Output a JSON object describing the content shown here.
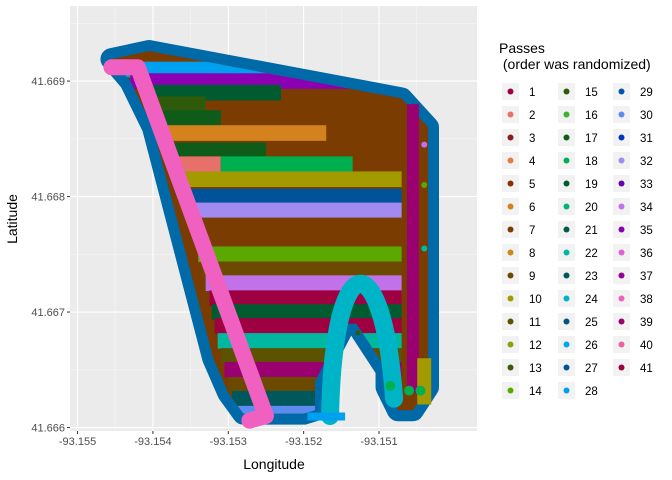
{
  "chart_data": {
    "type": "scatter",
    "xlabel": "Longitude",
    "ylabel": "Latitude",
    "xlim": [
      -93.1551,
      -93.1497
    ],
    "ylim": [
      41.66597,
      41.66965
    ],
    "x_ticks": [
      -93.155,
      -93.154,
      -93.153,
      -93.152,
      -93.151
    ],
    "x_tick_labels": [
      "-93.155",
      "-93.154",
      "-93.153",
      "-93.152",
      "-93.151"
    ],
    "y_ticks": [
      41.666,
      41.667,
      41.668,
      41.669
    ],
    "y_tick_labels": [
      "41.666",
      "41.667",
      "41.668",
      "41.669"
    ],
    "grid": true,
    "legend": {
      "title_line1": "Passes",
      "title_line2": " (order was randomized)",
      "placement": "right"
    },
    "series": [
      {
        "label": "1",
        "color": "#9E0142"
      },
      {
        "label": "2",
        "color": "#E8706A"
      },
      {
        "label": "3",
        "color": "#8B1A1A"
      },
      {
        "label": "4",
        "color": "#E47A4C"
      },
      {
        "label": "5",
        "color": "#8B2E00"
      },
      {
        "label": "6",
        "color": "#D4821E"
      },
      {
        "label": "7",
        "color": "#7A3C00"
      },
      {
        "label": "8",
        "color": "#C88A1A"
      },
      {
        "label": "9",
        "color": "#6B4A00"
      },
      {
        "label": "10",
        "color": "#A39A00"
      },
      {
        "label": "11",
        "color": "#5C5200"
      },
      {
        "label": "12",
        "color": "#8EA010"
      },
      {
        "label": "13",
        "color": "#3E5A0A"
      },
      {
        "label": "14",
        "color": "#5AA800"
      },
      {
        "label": "15",
        "color": "#2E5A0A"
      },
      {
        "label": "16",
        "color": "#3CB428"
      },
      {
        "label": "17",
        "color": "#0F5C1A"
      },
      {
        "label": "18",
        "color": "#00B050"
      },
      {
        "label": "19",
        "color": "#005C30"
      },
      {
        "label": "20",
        "color": "#00B47A"
      },
      {
        "label": "21",
        "color": "#005C48"
      },
      {
        "label": "22",
        "color": "#00B8A0"
      },
      {
        "label": "23",
        "color": "#00585C"
      },
      {
        "label": "24",
        "color": "#00B4C8"
      },
      {
        "label": "25",
        "color": "#00567A"
      },
      {
        "label": "26",
        "color": "#00A8E8"
      },
      {
        "label": "27",
        "color": "#00529A"
      },
      {
        "label": "28",
        "color": "#00A0F0"
      },
      {
        "label": "29",
        "color": "#0055B0"
      },
      {
        "label": "30",
        "color": "#5C8CF0"
      },
      {
        "label": "31",
        "color": "#0035C0"
      },
      {
        "label": "32",
        "color": "#A38AF0"
      },
      {
        "label": "33",
        "color": "#6A00B0"
      },
      {
        "label": "34",
        "color": "#C272E8"
      },
      {
        "label": "35",
        "color": "#8C00B4"
      },
      {
        "label": "36",
        "color": "#E060D8"
      },
      {
        "label": "37",
        "color": "#9A0096"
      },
      {
        "label": "38",
        "color": "#F060C0"
      },
      {
        "label": "39",
        "color": "#9A0070"
      },
      {
        "label": "40",
        "color": "#F0609A"
      },
      {
        "label": "41",
        "color": "#9E0042"
      }
    ],
    "field_boundary_lonlat": [
      [
        -93.15455,
        41.66919
      ],
      [
        -93.15405,
        41.66926
      ],
      [
        -93.1507,
        41.66885
      ],
      [
        -93.15035,
        41.6686
      ],
      [
        -93.15035,
        41.66635
      ],
      [
        -93.15055,
        41.66615
      ],
      [
        -93.15075,
        41.66615
      ],
      [
        -93.1509,
        41.66635
      ],
      [
        -93.1509,
        41.6665
      ],
      [
        -93.1513,
        41.6669
      ],
      [
        -93.15145,
        41.6669
      ],
      [
        -93.15185,
        41.6664
      ],
      [
        -93.15185,
        41.66615
      ],
      [
        -93.152,
        41.66612
      ],
      [
        -93.15255,
        41.66612
      ],
      [
        -93.1528,
        41.66612
      ],
      [
        -93.153,
        41.6663
      ],
      [
        -93.1532,
        41.6666
      ],
      [
        -93.1536,
        41.6676
      ],
      [
        -93.154,
        41.6686
      ],
      [
        -93.1543,
        41.669
      ]
    ],
    "outer_pass_color": "#0069A8",
    "passes_rows": [
      {
        "lat": 41.6691,
        "x0": -93.15455,
        "x1": -93.1508,
        "color": "#00A0F0"
      },
      {
        "lat": 41.669,
        "x0": -93.1543,
        "x1": -93.1507,
        "color": "#8C00B4"
      },
      {
        "lat": 41.6689,
        "x0": -93.15405,
        "x1": -93.1523,
        "color": "#005C30"
      },
      {
        "lat": 41.6688,
        "x0": -93.15395,
        "x1": -93.1533,
        "color": "#2E5A0A"
      },
      {
        "lat": 41.66868,
        "x0": -93.1539,
        "x1": -93.1531,
        "color": "#0F5C1A"
      },
      {
        "lat": 41.66855,
        "x0": -93.1538,
        "x1": -93.1517,
        "color": "#D4821E"
      },
      {
        "lat": 41.6684,
        "x0": -93.15375,
        "x1": -93.1525,
        "color": "#0F5C1A"
      },
      {
        "lat": 41.66828,
        "x0": -93.1537,
        "x1": -93.1531,
        "color": "#E8706A"
      },
      {
        "lat": 41.66828,
        "x0": -93.1531,
        "x1": -93.15135,
        "color": "#00B050"
      },
      {
        "lat": 41.66815,
        "x0": -93.1536,
        "x1": -93.1507,
        "color": "#A39A00"
      },
      {
        "lat": 41.668,
        "x0": -93.15355,
        "x1": -93.1507,
        "color": "#00529A"
      },
      {
        "lat": 41.66788,
        "x0": -93.1535,
        "x1": -93.1507,
        "color": "#A38AF0"
      },
      {
        "lat": 41.66775,
        "x0": -93.15345,
        "x1": -93.1507,
        "color": "#7A3C00"
      },
      {
        "lat": 41.66763,
        "x0": -93.15342,
        "x1": -93.1507,
        "color": "#7A3C00"
      },
      {
        "lat": 41.6675,
        "x0": -93.1534,
        "x1": -93.1507,
        "color": "#5AA800"
      },
      {
        "lat": 41.66737,
        "x0": -93.15335,
        "x1": -93.1507,
        "color": "#6B4A00"
      },
      {
        "lat": 41.66725,
        "x0": -93.1533,
        "x1": -93.1507,
        "color": "#C272E8"
      },
      {
        "lat": 41.66712,
        "x0": -93.15325,
        "x1": -93.1507,
        "color": "#9E0142"
      },
      {
        "lat": 41.667,
        "x0": -93.15322,
        "x1": -93.1507,
        "color": "#005C30"
      },
      {
        "lat": 41.66688,
        "x0": -93.15318,
        "x1": -93.1507,
        "color": "#9E0042"
      },
      {
        "lat": 41.66675,
        "x0": -93.15314,
        "x1": -93.1507,
        "color": "#00B8A0"
      },
      {
        "lat": 41.66662,
        "x0": -93.1531,
        "x1": -93.1507,
        "color": "#5C5200"
      },
      {
        "lat": 41.6665,
        "x0": -93.15305,
        "x1": -93.1507,
        "color": "#9A0070"
      },
      {
        "lat": 41.66637,
        "x0": -93.153,
        "x1": -93.1507,
        "color": "#6B4A00"
      },
      {
        "lat": 41.66625,
        "x0": -93.15295,
        "x1": -93.1512,
        "color": "#00585C"
      },
      {
        "lat": 41.66612,
        "x0": -93.1529,
        "x1": -93.1514,
        "color": "#5C8CF0"
      },
      {
        "lat": 41.666,
        "x0": -93.15285,
        "x1": -93.152,
        "color": "#9A0096"
      },
      {
        "lat": 41.66588,
        "x0": -93.1528,
        "x1": -93.1521,
        "color": "#00B47A"
      },
      {
        "lat": 41.66575,
        "x0": -93.15275,
        "x1": -93.1523,
        "color": "#E47A4C"
      },
      {
        "lat": 41.66563,
        "x0": -93.1527,
        "x1": -93.1524,
        "color": "#005C48"
      }
    ]
  }
}
